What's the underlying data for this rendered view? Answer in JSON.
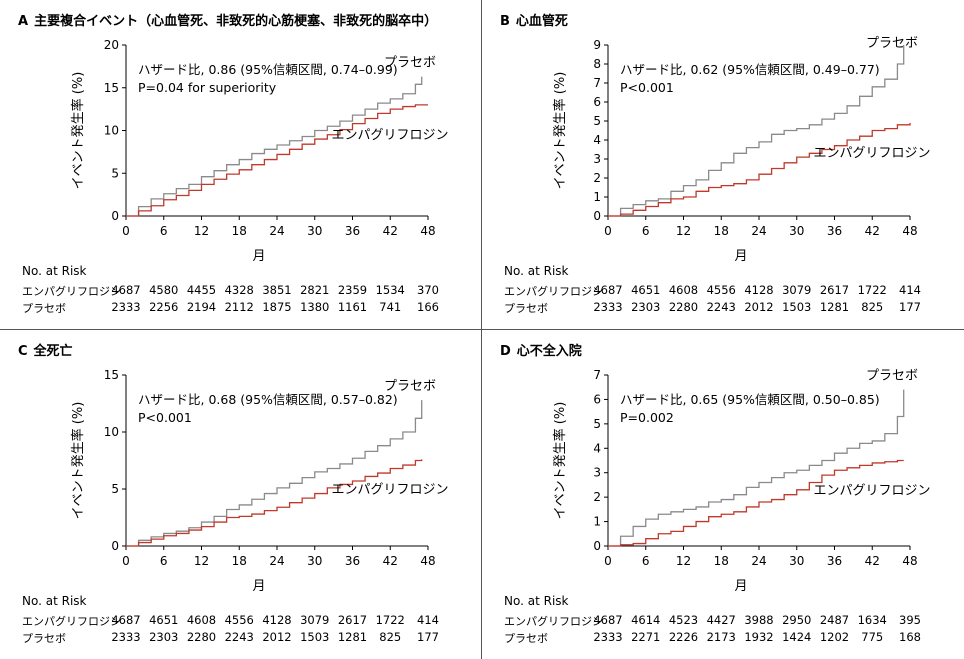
{
  "colors": {
    "placebo": "#8a8a8a",
    "empagliflozin": "#c0392b",
    "axis": "#000000",
    "divider": "#555555"
  },
  "x_axis_label": "月",
  "y_axis_label": "イベント発生率 (%)",
  "risk_header": "No. at Risk",
  "risk_row_labels": [
    "エンパグリフロジン",
    "プラセボ"
  ],
  "chart_data": [
    {
      "type": "line",
      "panel_letter": "A",
      "title": "主要複合イベント（心血管死、非致死的心筋梗塞、非致死的脳卒中）",
      "hr_text": "ハザード比, 0.86 (95%信頼区間, 0.74–0.99)",
      "p_text": "P=0.04 for superiority",
      "xlabel": "月",
      "ylabel": "イベント発生率 (%)",
      "xlim": [
        0,
        48
      ],
      "ylim": [
        0,
        20
      ],
      "xticks": [
        0,
        6,
        12,
        18,
        24,
        30,
        36,
        42,
        48
      ],
      "yticks": [
        0,
        5,
        10,
        15,
        20
      ],
      "series": [
        {
          "name": "プラセボ",
          "x": [
            0,
            2,
            4,
            6,
            8,
            10,
            12,
            14,
            16,
            18,
            20,
            22,
            24,
            26,
            28,
            30,
            32,
            34,
            36,
            38,
            40,
            42,
            44,
            46,
            47
          ],
          "values": [
            0,
            1.1,
            2.0,
            2.6,
            3.2,
            3.7,
            4.6,
            5.3,
            6.0,
            6.6,
            7.3,
            7.8,
            8.3,
            8.8,
            9.3,
            10.0,
            10.5,
            11.1,
            11.8,
            12.5,
            13.2,
            13.7,
            14.3,
            15.4,
            16.3
          ]
        },
        {
          "name": "エンパグリフロジン",
          "x": [
            0,
            2,
            4,
            6,
            8,
            10,
            12,
            14,
            16,
            18,
            20,
            22,
            24,
            26,
            28,
            30,
            32,
            34,
            36,
            38,
            40,
            42,
            44,
            46,
            48
          ],
          "values": [
            0,
            0.6,
            1.2,
            1.9,
            2.4,
            3.0,
            3.7,
            4.3,
            4.9,
            5.4,
            6.0,
            6.6,
            7.2,
            7.8,
            8.4,
            9.0,
            9.5,
            10.1,
            10.8,
            11.4,
            12.0,
            12.5,
            12.8,
            13.0,
            13.0
          ]
        }
      ],
      "curve_labels": [
        "プラセボ",
        "エンパグリフロジン"
      ],
      "risk": {
        "empagliflozin": [
          "4687",
          "4580",
          "4455",
          "4328",
          "3851",
          "2821",
          "2359",
          "1534",
          "370"
        ],
        "placebo": [
          "2333",
          "2256",
          "2194",
          "2112",
          "1875",
          "1380",
          "1161",
          "741",
          "166"
        ]
      }
    },
    {
      "type": "line",
      "panel_letter": "B",
      "title": "心血管死",
      "hr_text": "ハザード比, 0.62 (95%信頼区間, 0.49–0.77)",
      "p_text": "P<0.001",
      "xlabel": "月",
      "ylabel": "イベント発生率 (%)",
      "xlim": [
        0,
        48
      ],
      "ylim": [
        0,
        9
      ],
      "xticks": [
        0,
        6,
        12,
        18,
        24,
        30,
        36,
        42,
        48
      ],
      "yticks": [
        0,
        1,
        2,
        3,
        4,
        5,
        6,
        7,
        8,
        9
      ],
      "series": [
        {
          "name": "プラセボ",
          "x": [
            0,
            2,
            4,
            6,
            8,
            10,
            12,
            14,
            16,
            18,
            20,
            22,
            24,
            26,
            28,
            30,
            32,
            34,
            36,
            38,
            40,
            42,
            44,
            46,
            47
          ],
          "values": [
            0,
            0.4,
            0.6,
            0.8,
            0.9,
            1.3,
            1.6,
            1.9,
            2.4,
            2.8,
            3.3,
            3.6,
            3.9,
            4.3,
            4.5,
            4.6,
            4.8,
            5.1,
            5.4,
            5.8,
            6.3,
            6.8,
            7.2,
            8.0,
            9.0
          ]
        },
        {
          "name": "エンパグリフロジン",
          "x": [
            0,
            2,
            4,
            6,
            8,
            10,
            12,
            14,
            16,
            18,
            20,
            22,
            24,
            26,
            28,
            30,
            32,
            34,
            36,
            38,
            40,
            42,
            44,
            46,
            48
          ],
          "values": [
            0,
            0.1,
            0.3,
            0.5,
            0.7,
            0.9,
            1.0,
            1.3,
            1.5,
            1.6,
            1.7,
            1.9,
            2.2,
            2.5,
            2.8,
            3.1,
            3.3,
            3.5,
            3.7,
            4.0,
            4.2,
            4.5,
            4.6,
            4.8,
            4.9
          ]
        }
      ],
      "curve_labels": [
        "プラセボ",
        "エンパグリフロジン"
      ],
      "risk": {
        "empagliflozin": [
          "4687",
          "4651",
          "4608",
          "4556",
          "4128",
          "3079",
          "2617",
          "1722",
          "414"
        ],
        "placebo": [
          "2333",
          "2303",
          "2280",
          "2243",
          "2012",
          "1503",
          "1281",
          "825",
          "177"
        ]
      }
    },
    {
      "type": "line",
      "panel_letter": "C",
      "title": "全死亡",
      "hr_text": "ハザード比, 0.68 (95%信頼区間, 0.57–0.82)",
      "p_text": "P<0.001",
      "xlabel": "月",
      "ylabel": "イベント発生率 (%)",
      "xlim": [
        0,
        48
      ],
      "ylim": [
        0,
        15
      ],
      "xticks": [
        0,
        6,
        12,
        18,
        24,
        30,
        36,
        42,
        48
      ],
      "yticks": [
        0,
        5,
        10,
        15
      ],
      "series": [
        {
          "name": "プラセボ",
          "x": [
            0,
            2,
            4,
            6,
            8,
            10,
            12,
            14,
            16,
            18,
            20,
            22,
            24,
            26,
            28,
            30,
            32,
            34,
            36,
            38,
            40,
            42,
            44,
            46,
            47
          ],
          "values": [
            0,
            0.5,
            0.8,
            1.1,
            1.3,
            1.6,
            2.1,
            2.6,
            3.2,
            3.6,
            4.1,
            4.6,
            5.1,
            5.5,
            6.0,
            6.5,
            6.8,
            7.2,
            7.7,
            8.3,
            8.8,
            9.4,
            10.0,
            11.2,
            12.8
          ]
        },
        {
          "name": "エンパグリフロジン",
          "x": [
            0,
            2,
            4,
            6,
            8,
            10,
            12,
            14,
            16,
            18,
            20,
            22,
            24,
            26,
            28,
            30,
            32,
            34,
            36,
            38,
            40,
            42,
            44,
            46,
            47
          ],
          "values": [
            0,
            0.3,
            0.6,
            0.9,
            1.1,
            1.4,
            1.7,
            2.1,
            2.5,
            2.6,
            2.8,
            3.1,
            3.4,
            3.8,
            4.2,
            4.6,
            5.1,
            5.4,
            5.7,
            6.1,
            6.4,
            6.8,
            7.1,
            7.5,
            7.6
          ]
        }
      ],
      "curve_labels": [
        "プラセボ",
        "エンパグリフロジン"
      ],
      "risk": {
        "empagliflozin": [
          "4687",
          "4651",
          "4608",
          "4556",
          "4128",
          "3079",
          "2617",
          "1722",
          "414"
        ],
        "placebo": [
          "2333",
          "2303",
          "2280",
          "2243",
          "2012",
          "1503",
          "1281",
          "825",
          "177"
        ]
      }
    },
    {
      "type": "line",
      "panel_letter": "D",
      "title": "心不全入院",
      "hr_text": "ハザード比, 0.65 (95%信頼区間, 0.50–0.85)",
      "p_text": "P=0.002",
      "xlabel": "月",
      "ylabel": "イベント発生率 (%)",
      "xlim": [
        0,
        48
      ],
      "ylim": [
        0,
        7
      ],
      "xticks": [
        0,
        6,
        12,
        18,
        24,
        30,
        36,
        42,
        48
      ],
      "yticks": [
        0,
        1,
        2,
        3,
        4,
        5,
        6,
        7
      ],
      "series": [
        {
          "name": "プラセボ",
          "x": [
            0,
            2,
            4,
            6,
            8,
            10,
            12,
            14,
            16,
            18,
            20,
            22,
            24,
            26,
            28,
            30,
            32,
            34,
            36,
            38,
            40,
            42,
            44,
            46,
            47
          ],
          "values": [
            0,
            0.4,
            0.8,
            1.1,
            1.3,
            1.4,
            1.5,
            1.6,
            1.8,
            1.9,
            2.1,
            2.4,
            2.6,
            2.8,
            3.0,
            3.1,
            3.3,
            3.5,
            3.8,
            4.0,
            4.2,
            4.3,
            4.6,
            5.3,
            6.4
          ]
        },
        {
          "name": "エンパグリフロジン",
          "x": [
            0,
            2,
            4,
            6,
            8,
            10,
            12,
            14,
            16,
            18,
            20,
            22,
            24,
            26,
            28,
            30,
            32,
            34,
            36,
            38,
            40,
            42,
            44,
            46,
            47
          ],
          "values": [
            0,
            0.05,
            0.1,
            0.3,
            0.5,
            0.6,
            0.8,
            1.0,
            1.2,
            1.3,
            1.4,
            1.6,
            1.8,
            1.9,
            2.1,
            2.3,
            2.6,
            2.9,
            3.1,
            3.2,
            3.3,
            3.4,
            3.45,
            3.5,
            3.5
          ]
        }
      ],
      "curve_labels": [
        "プラセボ",
        "エンパグリフロジン"
      ],
      "risk": {
        "empagliflozin": [
          "4687",
          "4614",
          "4523",
          "4427",
          "3988",
          "2950",
          "2487",
          "1634",
          "395"
        ],
        "placebo": [
          "2333",
          "2271",
          "2226",
          "2173",
          "1932",
          "1424",
          "1202",
          "775",
          "168"
        ]
      }
    }
  ]
}
